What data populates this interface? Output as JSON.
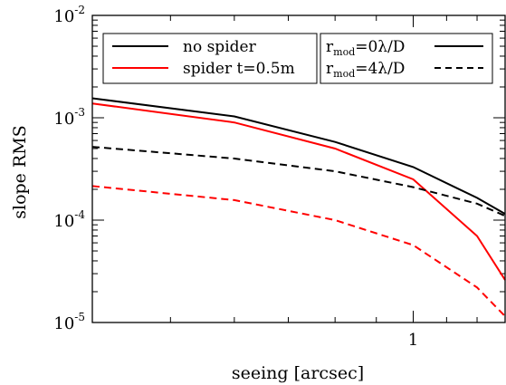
{
  "chart_data": {
    "type": "line",
    "xlabel": "seeing [arcsec]",
    "ylabel": "slope RMS",
    "x_scale": "log",
    "y_scale": "log",
    "xlim": [
      0.4,
      1.3
    ],
    "ylim": [
      1e-05,
      0.01
    ],
    "x_ticks": [
      {
        "value": 1,
        "label": "1"
      }
    ],
    "y_ticks": [
      {
        "value": 1e-05,
        "base": "10",
        "exp": "-5"
      },
      {
        "value": 0.0001,
        "base": "10",
        "exp": "-4"
      },
      {
        "value": 0.001,
        "base": "10",
        "exp": "-3"
      },
      {
        "value": 0.01,
        "base": "10",
        "exp": "-2"
      }
    ],
    "x": [
      0.4,
      0.6,
      0.8,
      1.0,
      1.2,
      1.3
    ],
    "series": [
      {
        "name": "no spider",
        "modulation": "r_mod=0λ/D",
        "color": "#000000",
        "dashed": false,
        "values": [
          0.00155,
          0.00103,
          0.00058,
          0.00033,
          0.000165,
          0.000115
        ]
      },
      {
        "name": "spider t=0.5m",
        "modulation": "r_mod=0λ/D",
        "color": "#ff0000",
        "dashed": false,
        "values": [
          0.00138,
          0.0009,
          0.0005,
          0.00025,
          7e-05,
          2.6e-05
        ]
      },
      {
        "name": "no spider",
        "modulation": "r_mod=4λ/D",
        "color": "#000000",
        "dashed": true,
        "values": [
          0.00052,
          0.0004,
          0.0003,
          0.00021,
          0.000145,
          0.00011
        ]
      },
      {
        "name": "spider t=0.5m",
        "modulation": "r_mod=4λ/D",
        "color": "#ff0000",
        "dashed": true,
        "values": [
          0.000215,
          0.000157,
          0.0001,
          5.7e-05,
          2.2e-05,
          1.15e-05
        ]
      }
    ],
    "legend_left": [
      {
        "label": "no spider",
        "color": "#000000"
      },
      {
        "label": "spider t=0.5m",
        "color": "#ff0000"
      }
    ],
    "legend_right": [
      {
        "prefix": "r",
        "sub": "mod",
        "suffix": "=0λ/D",
        "dashed": false
      },
      {
        "prefix": "r",
        "sub": "mod",
        "suffix": "=4λ/D",
        "dashed": true
      }
    ],
    "legend_placement": "top"
  }
}
